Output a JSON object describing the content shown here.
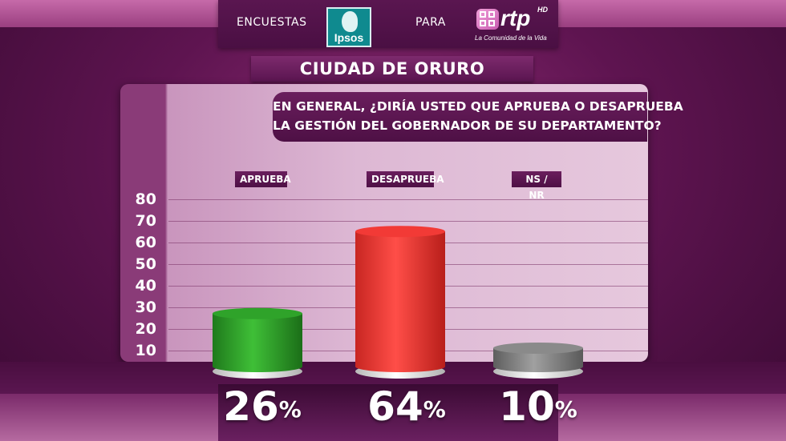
{
  "header": {
    "left_text": "ENCUESTAS",
    "mid_text": "PARA",
    "ipsos_brand": "Ipsos",
    "rtp_brand": "rtp",
    "rtp_hd": "HD",
    "rtp_tagline": "La Comunidad de la Vida"
  },
  "city_title": "CIUDAD DE ORURO",
  "question": {
    "line1": "EN GENERAL, ¿DIRÍA USTED QUE APRUEBA O DESAPRUEBA",
    "line2": "LA GESTIÓN DEL GOBERNADOR DE SU DEPARTAMENTO?"
  },
  "colors": {
    "aprueba": "#2fa32a",
    "desaprueba": "#f23a36",
    "nsnr": "#8a8a8a"
  },
  "chart_data": {
    "type": "bar",
    "categories": [
      "APRUEBA",
      "DESAPRUEBA",
      "NS / NR"
    ],
    "values": [
      26,
      64,
      10
    ],
    "value_labels": [
      "26%",
      "64%",
      "10%"
    ],
    "yticks": [
      "80",
      "70",
      "60",
      "50",
      "40",
      "30",
      "20",
      "10"
    ],
    "ylim": [
      0,
      80
    ],
    "grid": true
  }
}
